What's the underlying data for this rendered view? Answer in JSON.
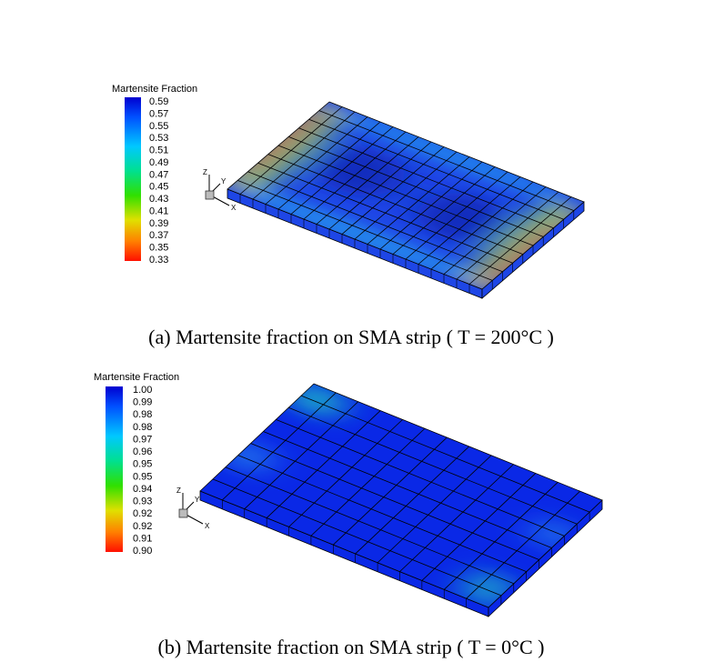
{
  "panels": [
    {
      "legend": {
        "title": "Martensite Fraction",
        "labels": [
          "0.59",
          "0.57",
          "0.55",
          "0.53",
          "0.51",
          "0.49",
          "0.47",
          "0.45",
          "0.43",
          "0.41",
          "0.39",
          "0.37",
          "0.35",
          "0.33"
        ]
      },
      "axes": {
        "z": "Z",
        "y": "Y",
        "x": "X"
      },
      "caption": "(a) Martensite fraction on SMA strip ( T = 200°C )"
    },
    {
      "legend": {
        "title": "Martensite Fraction",
        "labels": [
          "1.00",
          "0.99",
          "0.98",
          "0.98",
          "0.97",
          "0.96",
          "0.95",
          "0.95",
          "0.94",
          "0.93",
          "0.92",
          "0.92",
          "0.91",
          "0.90"
        ]
      },
      "axes": {
        "z": "Z",
        "y": "Y",
        "x": "X"
      },
      "caption": "(b) Martensite fraction on SMA strip ( T = 0°C )"
    }
  ]
}
